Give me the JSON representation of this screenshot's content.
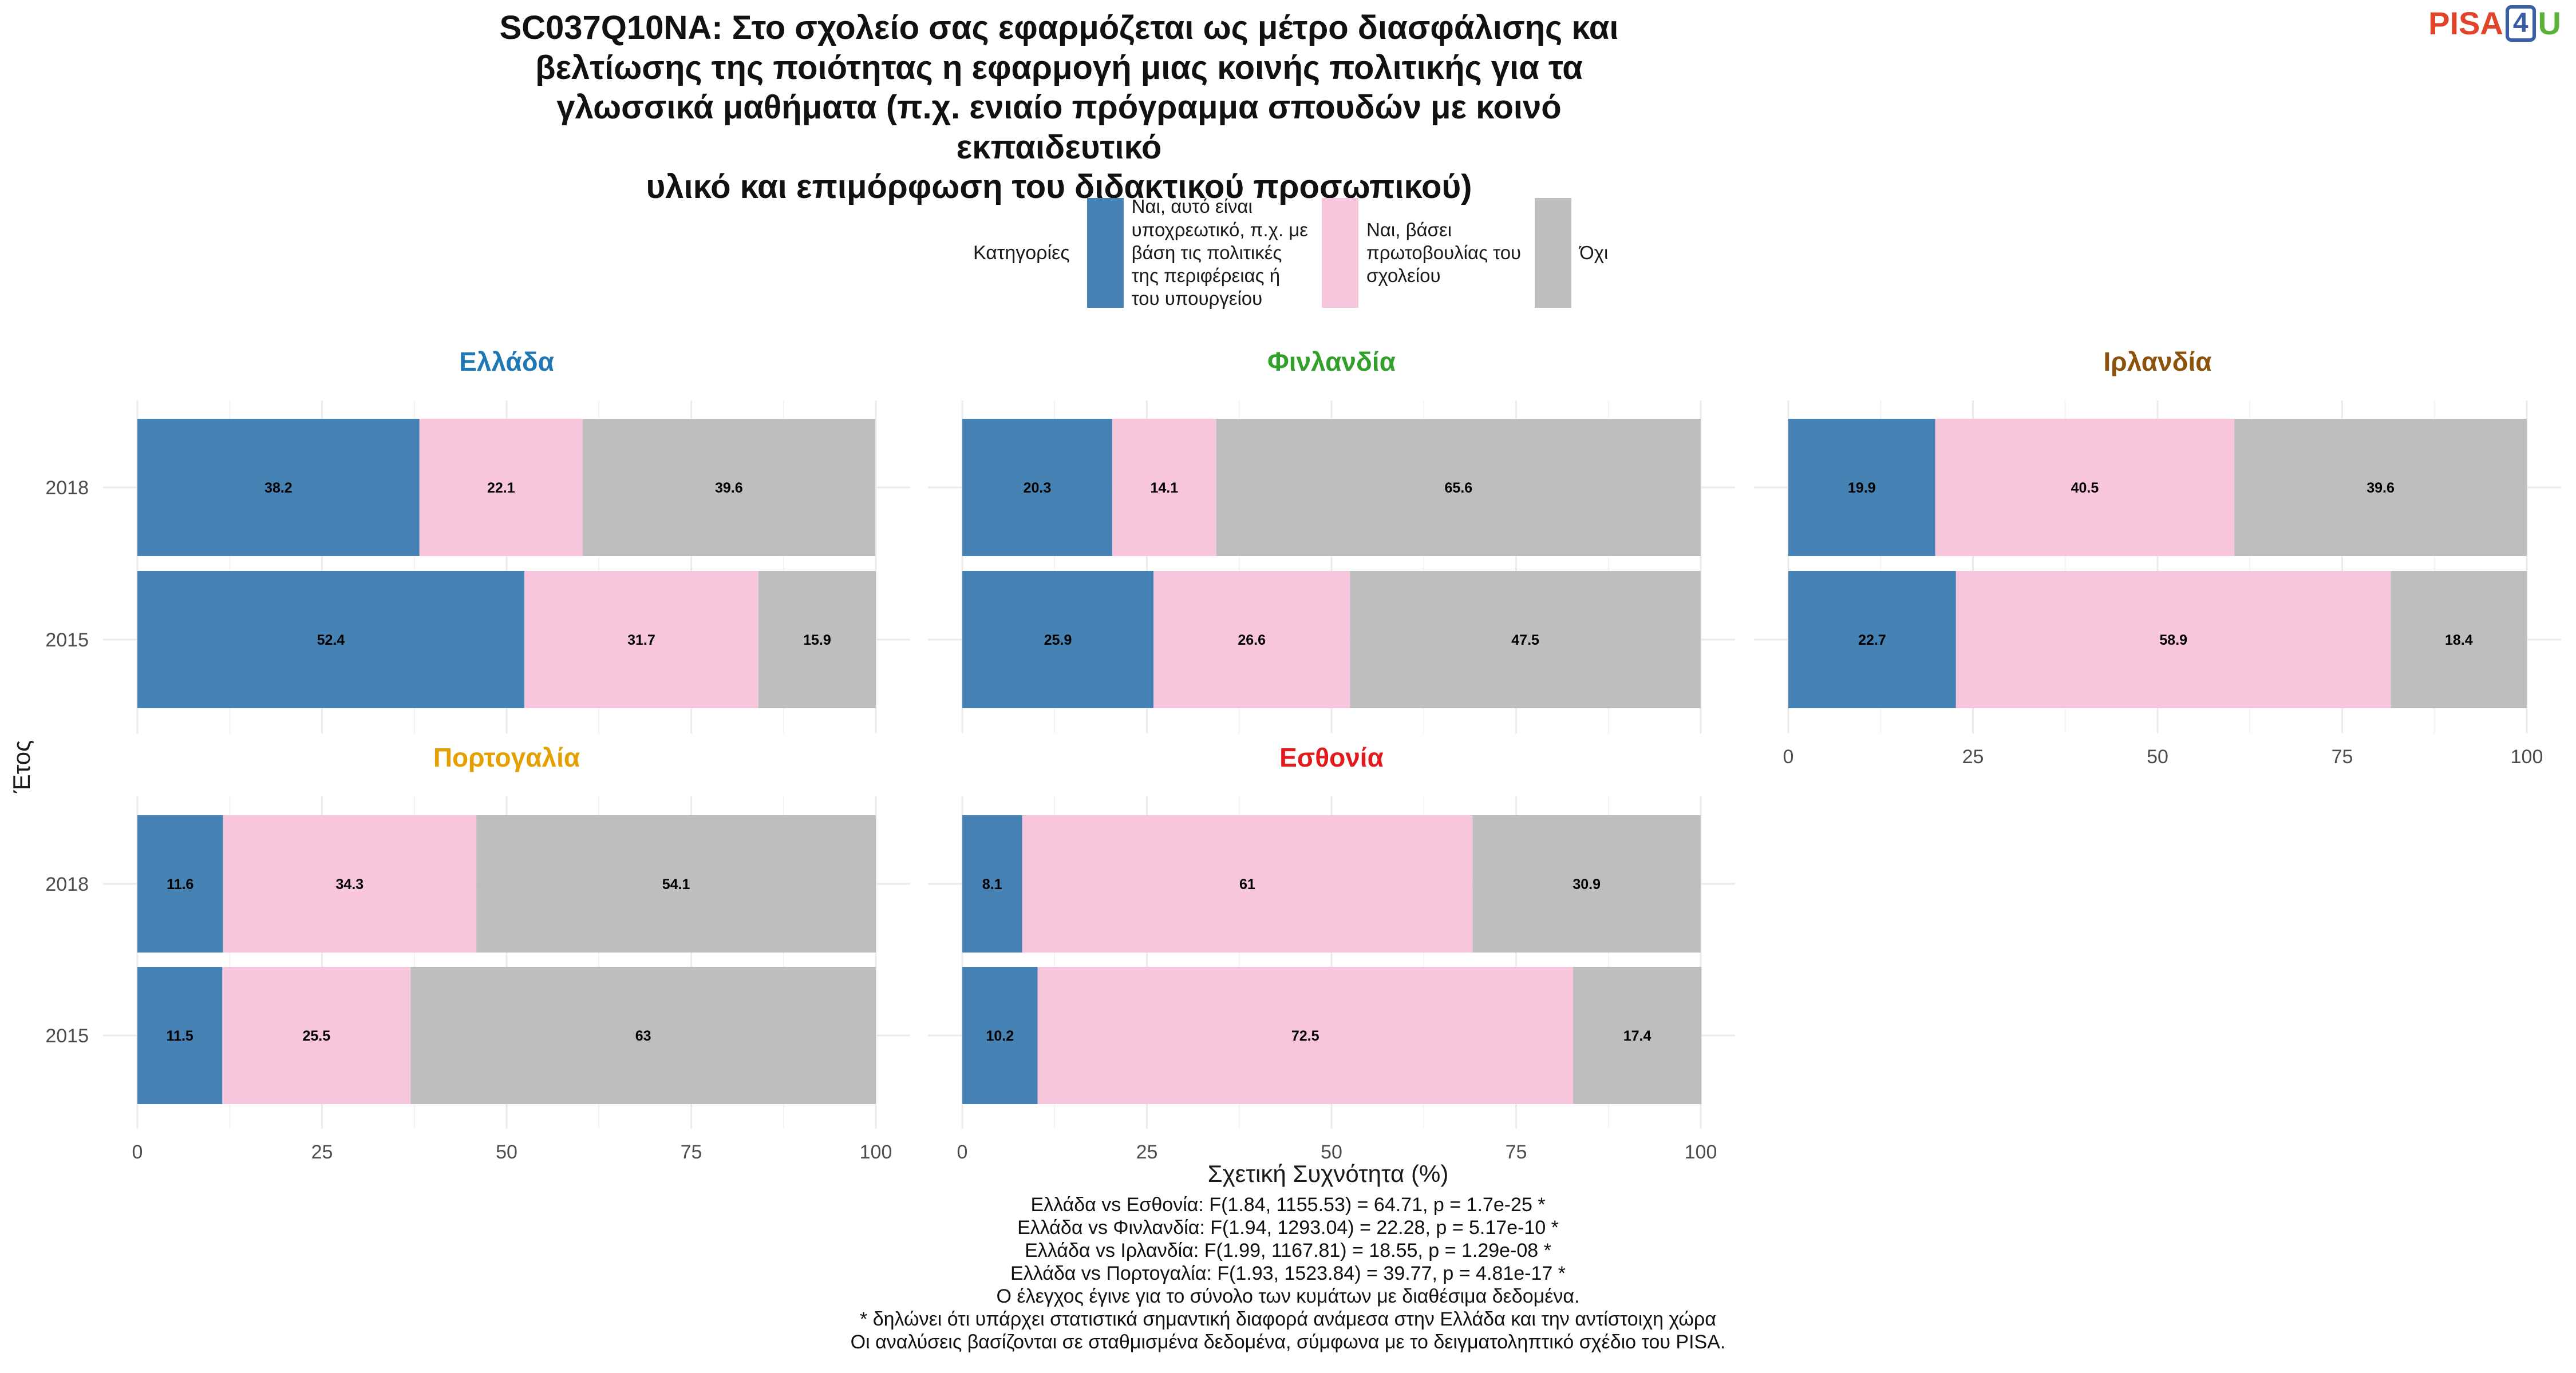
{
  "title_lines": [
    "SC037Q10NA: Στο σχολείο σας εφαρμόζεται ως μέτρο διασφάλισης και",
    "βελτίωσης της ποιότητας η εφαρμογή μιας κοινής πολιτικής για τα",
    "γλωσσικά μαθήματα (π.χ. ενιαίο πρόγραμμα σπουδών με κοινό εκπαιδευτικό",
    "υλικό και επιμόρφωση του διδακτικού προσωπικού)"
  ],
  "logo": {
    "part1": "PISA",
    "part2": "4",
    "part3": "U"
  },
  "legend": {
    "title": "Κατηγορίες",
    "items": [
      {
        "lines": [
          "Ναι, αυτό είναι",
          "υποχρεωτικό, π.χ. με",
          "βάση τις πολιτικές",
          "της περιφέρειας ή",
          "του υπουργείου"
        ],
        "color": "#4682b4"
      },
      {
        "lines": [
          "Ναι, βάσει",
          "πρωτοβουλίας του",
          "σχολείου"
        ],
        "color": "#f7c6dc"
      },
      {
        "lines": [
          "Όχι"
        ],
        "color": "#bebebe"
      }
    ]
  },
  "chart_data": {
    "type": "bar",
    "orientation": "horizontal-stacked",
    "categories_order": [
      "Ναι, αυτό είναι υποχρεωτικό, π.χ. με βάση τις πολιτικές της περιφέρειας ή του υπουργείου",
      "Ναι, βάσει πρωτοβουλίας του σχολείου",
      "Όχι"
    ],
    "colors": [
      "#4682b4",
      "#f7c6dc",
      "#bebebe"
    ],
    "xlabel": "Σχετική Συχνότητα (%)",
    "ylabel": "Έτος",
    "xlim": [
      0,
      100
    ],
    "xticks": [
      0,
      25,
      50,
      75,
      100
    ],
    "years": [
      "2018",
      "2015"
    ],
    "facets": [
      {
        "country": "Ελλάδα",
        "color": "#1f78b4",
        "bars": [
          {
            "year": "2018",
            "values": [
              38.2,
              22.1,
              39.6
            ]
          },
          {
            "year": "2015",
            "values": [
              52.4,
              31.7,
              15.9
            ]
          }
        ]
      },
      {
        "country": "Φινλανδία",
        "color": "#33a02c",
        "bars": [
          {
            "year": "2018",
            "values": [
              20.3,
              14.1,
              65.6
            ]
          },
          {
            "year": "2015",
            "values": [
              25.9,
              26.6,
              47.5
            ]
          }
        ]
      },
      {
        "country": "Ιρλανδία",
        "color": "#8c510a",
        "bars": [
          {
            "year": "2018",
            "values": [
              19.9,
              40.5,
              39.6
            ]
          },
          {
            "year": "2015",
            "values": [
              22.7,
              58.9,
              18.4
            ]
          }
        ]
      },
      {
        "country": "Πορτογαλία",
        "color": "#e69f00",
        "bars": [
          {
            "year": "2018",
            "values": [
              11.6,
              34.3,
              54.1
            ]
          },
          {
            "year": "2015",
            "values": [
              11.5,
              25.5,
              63
            ]
          }
        ]
      },
      {
        "country": "Εσθονία",
        "color": "#e31a1c",
        "bars": [
          {
            "year": "2018",
            "values": [
              8.1,
              61,
              30.9
            ]
          },
          {
            "year": "2015",
            "values": [
              10.2,
              72.5,
              17.4
            ]
          }
        ]
      }
    ]
  },
  "footnotes": [
    "Ελλάδα vs Εσθονία: F(1.84, 1155.53) = 64.71, p = 1.7e-25 *",
    "Ελλάδα vs Φινλανδία: F(1.94, 1293.04) = 22.28, p = 5.17e-10 *",
    "Ελλάδα vs Ιρλανδία: F(1.99, 1167.81) = 18.55, p = 1.29e-08 *",
    "Ελλάδα vs Πορτογαλία: F(1.93, 1523.84) = 39.77, p = 4.81e-17 *",
    "Ο έλεγχος έγινε για το σύνολο των κυμάτων με διαθέσιμα δεδομένα.",
    "* δηλώνει ότι υπάρχει στατιστικά σημαντική διαφορά ανάμεσα στην Ελλάδα και την αντίστοιχη χώρα",
    "Οι αναλύσεις βασίζονται σε σταθμισμένα δεδομένα, σύμφωνα με το δειγματοληπτικό σχέδιο του PISA."
  ]
}
